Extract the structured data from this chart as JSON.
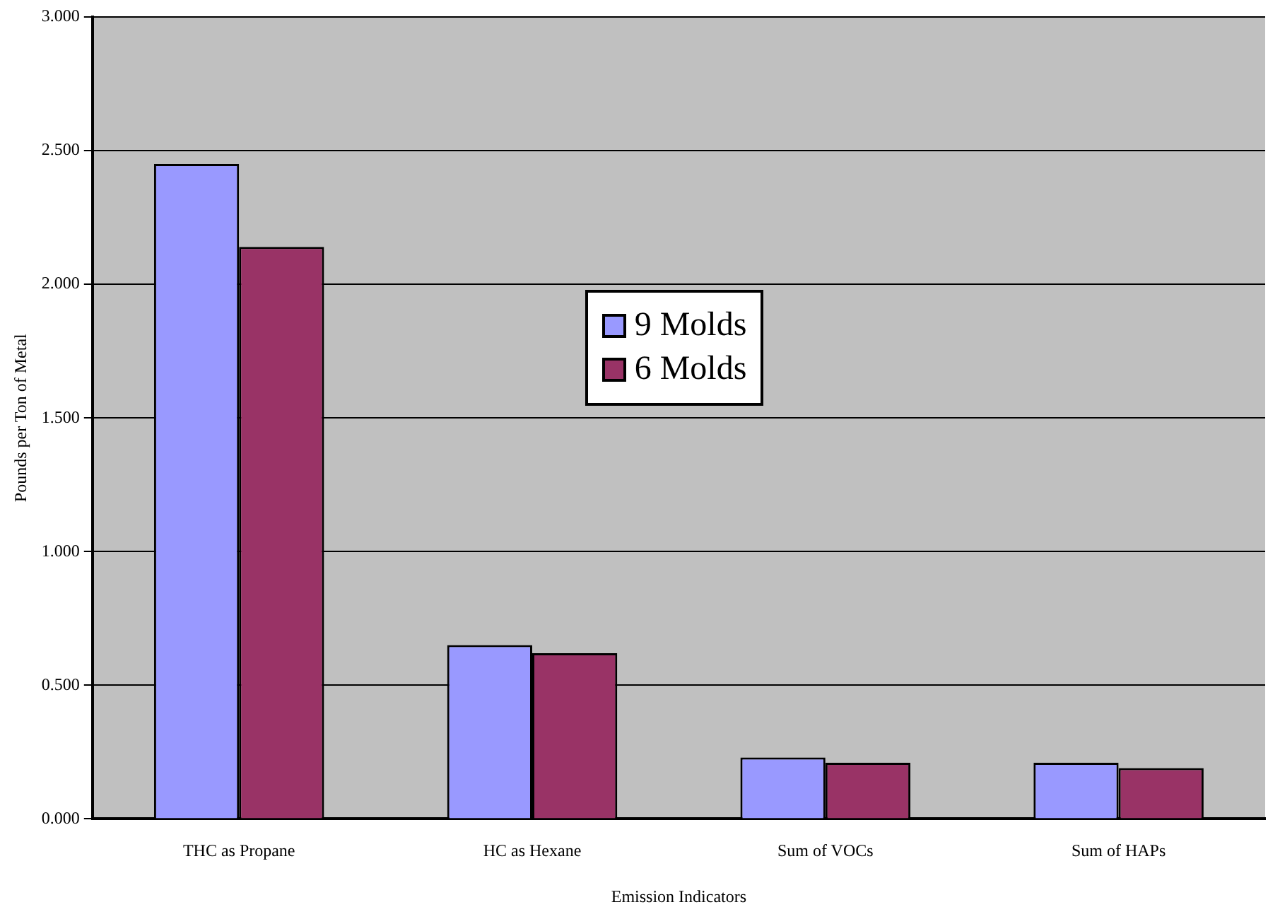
{
  "chart_data": {
    "type": "bar",
    "xlabel": "Emission Indicators",
    "ylabel": "Pounds per Ton of Metal",
    "categories": [
      "THC as Propane",
      "HC as Hexane",
      "Sum of VOCs",
      "Sum of HAPs"
    ],
    "series": [
      {
        "name": "9 Molds",
        "color": "#9999ff",
        "values": [
          2.45,
          0.65,
          0.23,
          0.21
        ]
      },
      {
        "name": "6 Molds",
        "color": "#993366",
        "values": [
          2.14,
          0.62,
          0.21,
          0.19
        ]
      }
    ],
    "ylim": [
      0,
      3
    ],
    "yticks": [
      {
        "value": 0,
        "label": "0.000"
      },
      {
        "value": 0.5,
        "label": "0.500"
      },
      {
        "value": 1,
        "label": "1.000"
      },
      {
        "value": 1.5,
        "label": "1.500"
      },
      {
        "value": 2,
        "label": "2.000"
      },
      {
        "value": 2.5,
        "label": "2.500"
      },
      {
        "value": 3,
        "label": "3.000"
      }
    ],
    "grid": "y",
    "legend": "center"
  }
}
